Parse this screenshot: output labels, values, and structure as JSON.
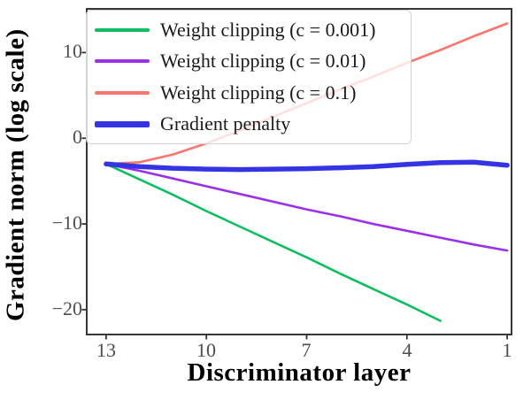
{
  "chart_data": {
    "type": "line",
    "title": "",
    "xlabel": "Discriminator layer",
    "ylabel": "Gradient norm (log scale)",
    "x": [
      13,
      12,
      11,
      10,
      9,
      8,
      7,
      6,
      5,
      4,
      3,
      2,
      1
    ],
    "x_axis_reversed": true,
    "xlim": [
      13.58,
      0.87
    ],
    "ylim": [
      -22.9,
      15.1
    ],
    "xticks": [
      13,
      10,
      7,
      4,
      1
    ],
    "yticks": [
      10,
      0,
      -10,
      -20
    ],
    "grid": false,
    "panel_border": true,
    "legend_position": "top-left",
    "series": [
      {
        "key": "weight-clipping-c-0-001",
        "name": "Weight clipping (c = 0.001)",
        "color": "#0cbe5f",
        "width": 2.6,
        "values": [
          -3.0,
          -4.8,
          -6.6,
          -8.5,
          -10.3,
          -12.1,
          -13.9,
          -15.8,
          -17.6,
          -19.4,
          -21.3,
          null,
          null
        ]
      },
      {
        "key": "weight-clipping-c-0-01",
        "name": "Weight clipping (c = 0.01)",
        "color": "#9a30e8",
        "width": 2.6,
        "values": [
          -3.0,
          -3.8,
          -4.7,
          -5.6,
          -6.5,
          -7.4,
          -8.3,
          -9.1,
          -10.0,
          -10.8,
          -11.6,
          -12.4,
          -13.1
        ]
      },
      {
        "key": "weight-clipping-c-0-1",
        "name": "Weight clipping (c = 0.1)",
        "color": "#f8766d",
        "width": 2.6,
        "values": [
          -3.0,
          -2.8,
          -1.9,
          -0.6,
          0.9,
          2.5,
          4.1,
          5.7,
          7.2,
          8.8,
          10.3,
          11.9,
          13.4
        ]
      },
      {
        "key": "gradient-penalty",
        "name": "Gradient penalty",
        "color": "#3434e4",
        "width": 5.5,
        "values": [
          -3.0,
          -3.3,
          -3.5,
          -3.6,
          -3.65,
          -3.6,
          -3.55,
          -3.45,
          -3.3,
          -3.05,
          -2.85,
          -2.8,
          -3.15
        ]
      }
    ]
  },
  "style": {
    "border_color": "#383838",
    "tick_color": "#333333",
    "tick_label_color": "#4d4d4d"
  }
}
